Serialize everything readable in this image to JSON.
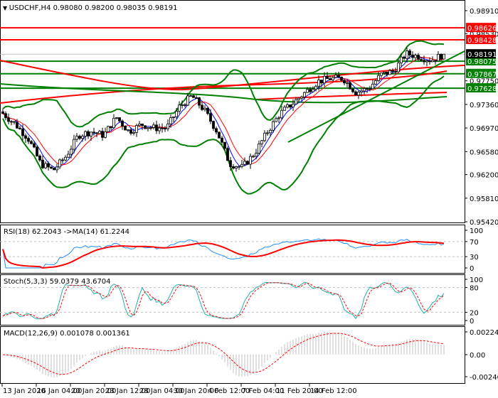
{
  "title": {
    "symbol": "USDCHF,H4",
    "ohlc": "0.98080 0.98200 0.98035 0.98191",
    "text": "USDCHF,H4  0.98080 0.98200 0.98035 0.98191"
  },
  "colors": {
    "bull": "#ffffff",
    "bear": "#000000",
    "support": "#008000",
    "resistance": "#ff0000",
    "current": "#000000",
    "rsi": "#1e90ff",
    "rsi_ma": "#ff0000",
    "stoch_main": "#20b2aa",
    "stoch_signal": "#ff0000",
    "macd_hist": "#c0c0c0",
    "macd_signal": "#ff0000"
  },
  "chart_data": [
    {
      "type": "candlestick",
      "title": "USDCHF,H4",
      "y_ticks": [
        "0.98910",
        "0.98530",
        "0.97750",
        "0.97360",
        "0.96970",
        "0.96580",
        "0.96200",
        "0.95810",
        "0.95420"
      ],
      "ylim": [
        0.9542,
        0.9891
      ],
      "x_ticks": [
        "13 Jan 2020",
        "16 Jan 04:00",
        "20 Jan 20:00",
        "23 Jan 12:00",
        "28 Jan 04:00",
        "30 Jan 20:00",
        "4 Feb 12:00",
        "7 Feb 04:00",
        "11 Feb 20:00",
        "14 Feb 12:00"
      ],
      "anchor_closes": [
        0.9721,
        0.9703,
        0.968,
        0.9638,
        0.9627,
        0.965,
        0.9685,
        0.9691,
        0.9685,
        0.9715,
        0.9691,
        0.9703,
        0.9697,
        0.9697,
        0.9732,
        0.975,
        0.9726,
        0.9691,
        0.9638,
        0.9632,
        0.9656,
        0.9691,
        0.9721,
        0.9738,
        0.9756,
        0.9774,
        0.9779,
        0.9779,
        0.9756,
        0.9762,
        0.9785,
        0.9791,
        0.982,
        0.9815,
        0.9809,
        0.9819
      ],
      "last_price": {
        "value": 0.98191,
        "label": "0.98191"
      },
      "levels": [
        {
          "value": 0.98626,
          "label": "0.98626",
          "kind": "resistance"
        },
        {
          "value": 0.98428,
          "label": "0.98428",
          "kind": "resistance"
        },
        {
          "value": 0.98075,
          "label": "0.98075",
          "kind": "support"
        },
        {
          "value": 0.97867,
          "label": "0.97867",
          "kind": "support"
        },
        {
          "value": 0.97628,
          "label": "0.97628",
          "kind": "support"
        }
      ]
    },
    {
      "type": "line",
      "title": "RSI(18) 62.2043  ->MA(14) 61.2244",
      "y_ticks": [
        "100",
        "70",
        "30",
        "0"
      ],
      "ylim": [
        0,
        100
      ],
      "levels": [
        70,
        30
      ]
    },
    {
      "type": "line",
      "title": "Stoch(5,3,3) 59.0379 43.6704",
      "y_ticks": [
        "100",
        "80",
        "20",
        "0"
      ],
      "ylim": [
        0,
        100
      ],
      "levels": [
        80,
        20
      ]
    },
    {
      "type": "bar",
      "title": "MACD(12,26,9) 0.001078 0.001361",
      "y_ticks": [
        "0.002246",
        "0.00",
        "-0.002408"
      ],
      "ylim": [
        -0.002408,
        0.002246
      ]
    }
  ]
}
